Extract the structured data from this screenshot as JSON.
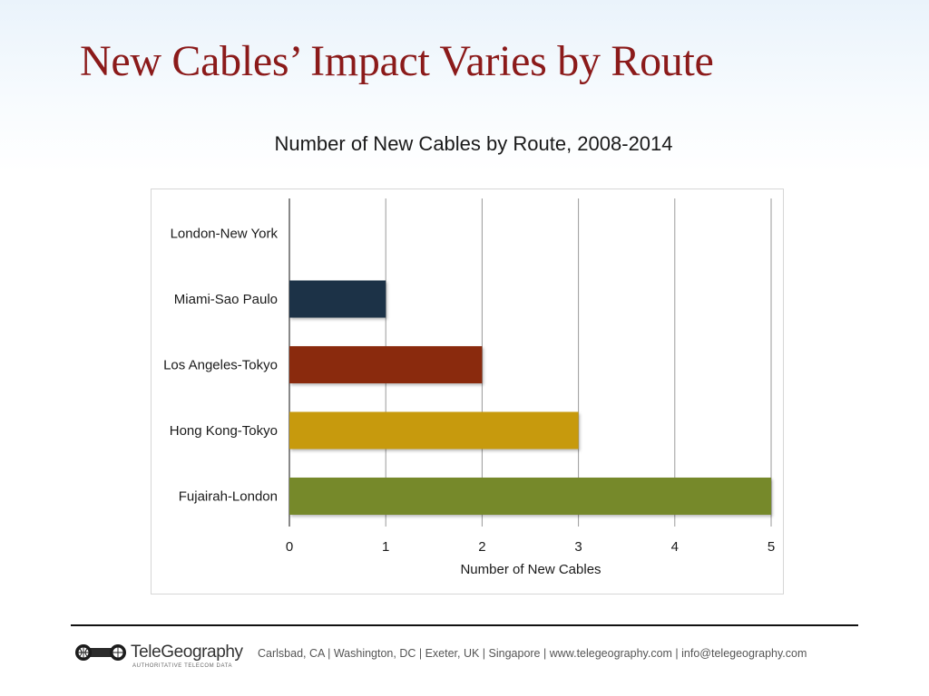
{
  "slide": {
    "title": "New Cables’ Impact Varies by Route"
  },
  "chart_data": {
    "type": "bar",
    "orientation": "horizontal",
    "title": "Number of New Cables by Route, 2008-2014",
    "xlabel": "Number of New Cables",
    "ylabel": "",
    "categories": [
      "London-New York",
      "Miami-Sao Paulo",
      "Los Angeles-Tokyo",
      "Hong Kong-Tokyo",
      "Fujairah-London"
    ],
    "values": [
      0,
      1,
      2,
      3,
      5
    ],
    "colors": [
      "#2a3b52",
      "#1e3047",
      "#8a2c0c",
      "#c79a0c",
      "#76892b"
    ],
    "xlim": [
      0,
      5
    ],
    "xticks": [
      "0",
      "1",
      "2",
      "3",
      "4",
      "5"
    ],
    "grid": true,
    "legend": "none"
  },
  "footer": {
    "logo_name": "TeleGeography",
    "logo_tagline": "AUTHORITATIVE TELECOM DATA",
    "contact": "Carlsbad, CA | Washington, DC | Exeter, UK | Singapore | www.telegeography.com | info@telegeography.com"
  }
}
